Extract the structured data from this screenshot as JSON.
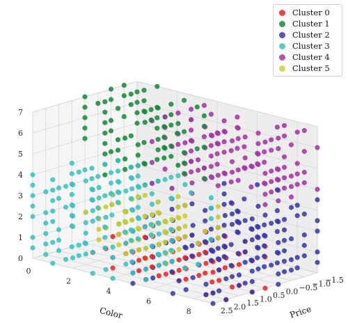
{
  "chart_data": {
    "type": "scatter",
    "projection": "3d",
    "title": "",
    "axes": {
      "x": {
        "label": "Color",
        "range": [
          0,
          9
        ],
        "ticks": [
          "0",
          "2",
          "4",
          "6",
          "8"
        ]
      },
      "y": {
        "label": "Price",
        "range": [
          -1.5,
          2.5
        ],
        "ticks": [
          "−1.5",
          "−1.0",
          "−0.5",
          "0.0",
          "0.5",
          "1.0",
          "1.5",
          "2.0",
          "2.5"
        ]
      },
      "z": {
        "label": "",
        "range": [
          0,
          7
        ],
        "ticks": [
          "0",
          "1",
          "2",
          "3",
          "4",
          "5",
          "6",
          "7"
        ]
      }
    },
    "grid": true,
    "legend_position": "top-right",
    "series": [
      {
        "name": "Cluster 0",
        "color": "#e8262a",
        "x_range": [
          3,
          9
        ],
        "y_range": [
          0.5,
          2.5
        ],
        "z_range": [
          0,
          2
        ]
      },
      {
        "name": "Cluster 1",
        "color": "#1a8a3c",
        "x_range": [
          0,
          4
        ],
        "y_range": [
          -1.5,
          0.5
        ],
        "z_range": [
          3.5,
          7
        ]
      },
      {
        "name": "Cluster 2",
        "color": "#3a3aa8",
        "x_range": [
          5,
          9
        ],
        "y_range": [
          -1.5,
          2.5
        ],
        "z_range": [
          0,
          3.5
        ]
      },
      {
        "name": "Cluster 3",
        "color": "#3ec0c0",
        "x_range": [
          0,
          5
        ],
        "y_range": [
          -0.5,
          2.5
        ],
        "z_range": [
          0,
          4
        ]
      },
      {
        "name": "Cluster 4",
        "color": "#a535a5",
        "x_range": [
          4,
          9
        ],
        "y_range": [
          -1.5,
          1.0
        ],
        "z_range": [
          4,
          7
        ]
      },
      {
        "name": "Cluster 5",
        "color": "#cdcc2e",
        "x_range": [
          2,
          6
        ],
        "y_range": [
          0.0,
          2.0
        ],
        "z_range": [
          1,
          3
        ]
      }
    ]
  }
}
